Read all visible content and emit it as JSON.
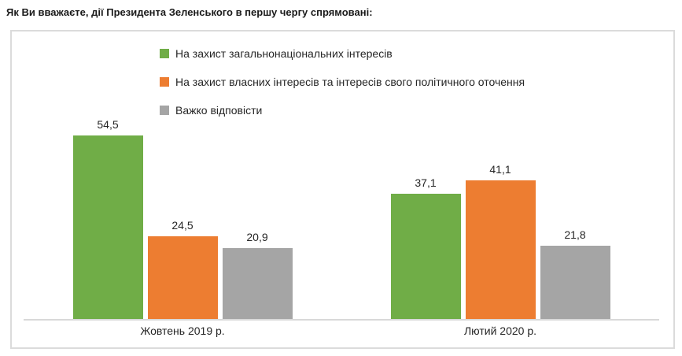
{
  "chart_data": {
    "type": "bar",
    "title": "Як Ви вважаєте, дії Президента Зеленського в першу чергу спрямовані:",
    "categories": [
      "Жовтень 2019 р.",
      "Лютий 2020 р."
    ],
    "series": [
      {
        "key": "national-interests",
        "name": "На захист загальнонаціональних інтересів",
        "color": "#70AD47",
        "values": [
          54.5,
          37.1
        ],
        "value_labels": [
          "54,5",
          "37,1"
        ]
      },
      {
        "key": "own-interests",
        "name": "На захист власних інтересів та інтересів  свого політичного оточення",
        "color": "#ED7D31",
        "values": [
          24.5,
          41.1
        ],
        "value_labels": [
          "24,5",
          "41,1"
        ]
      },
      {
        "key": "hard-to-answer",
        "name": "Важко відповісти",
        "color": "#A5A5A5",
        "values": [
          20.9,
          21.8
        ],
        "value_labels": [
          "20,9",
          "21,8"
        ]
      }
    ],
    "ylim": [
      0,
      60
    ],
    "grid": false,
    "y_axis_visible": false,
    "legend_position": "top-inside-left",
    "value_label_format": "decimal-comma",
    "axis_color": "#D9D9D9"
  }
}
